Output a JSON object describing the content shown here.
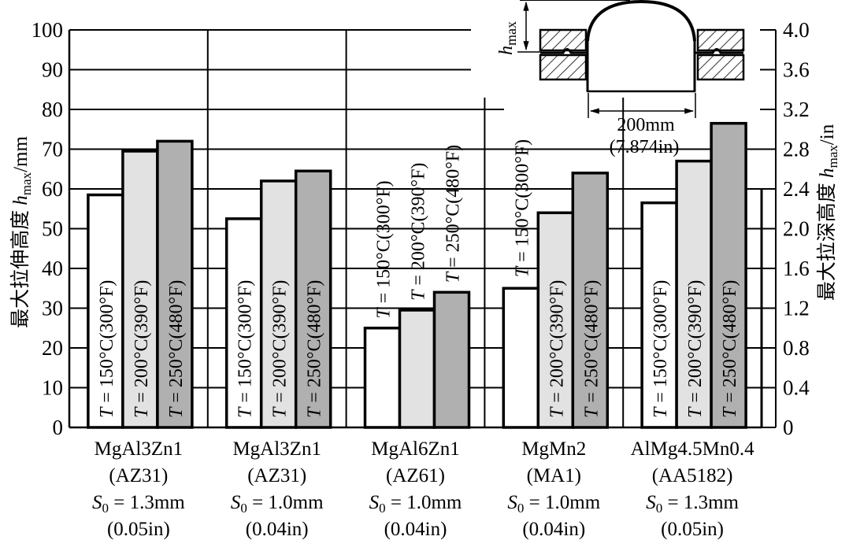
{
  "chart_data": {
    "type": "bar",
    "title": "",
    "ylabel": "最大拉伸高度 h_max/mm",
    "ylabel_parts": {
      "prefix": "最大拉伸高度 ",
      "var": "h",
      "sub": "max",
      "unit": "/mm"
    },
    "y2label": "最大拉深高度 h_max/in",
    "y2label_parts": {
      "prefix": "最大拉深高度 ",
      "var": "h",
      "sub": "max",
      "unit": "/in"
    },
    "ylim": [
      0,
      100
    ],
    "y2lim": [
      0,
      4.0
    ],
    "yticks": [
      "0",
      "10",
      "20",
      "30",
      "40",
      "50",
      "60",
      "70",
      "80",
      "90",
      "100"
    ],
    "y2ticks": [
      "0",
      "0.4",
      "0.8",
      "1.2",
      "1.6",
      "2.0",
      "2.4",
      "2.8",
      "3.2",
      "3.6",
      "4.0"
    ],
    "grid": true,
    "categories": [
      {
        "lines": [
          "MgAl3Zn1",
          "(AZ31)",
          "S0 = 1.3mm",
          "(0.05in)"
        ],
        "alloy": "MgAl3Zn1",
        "grade": "(AZ31)",
        "s_var": "S",
        "s_sub": "0",
        "s_val": " = 1.3mm",
        "inch": "(0.05in)"
      },
      {
        "lines": [
          "MgAl3Zn1",
          "(AZ31)",
          "S0 = 1.0mm",
          "(0.04in)"
        ],
        "alloy": "MgAl3Zn1",
        "grade": "(AZ31)",
        "s_var": "S",
        "s_sub": "0",
        "s_val": " = 1.0mm",
        "inch": "(0.04in)"
      },
      {
        "lines": [
          "MgAl6Zn1",
          "(AZ61)",
          "S0 = 1.0mm",
          "(0.04in)"
        ],
        "alloy": "MgAl6Zn1",
        "grade": "(AZ61)",
        "s_var": "S",
        "s_sub": "0",
        "s_val": " = 1.0mm",
        "inch": "(0.04in)"
      },
      {
        "lines": [
          "MgMn2",
          "(MA1)",
          "S0 = 1.0mm",
          "(0.04in)"
        ],
        "alloy": "MgMn2",
        "grade": "(MA1)",
        "s_var": "S",
        "s_sub": "0",
        "s_val": " = 1.0mm",
        "inch": "(0.04in)"
      },
      {
        "lines": [
          "AlMg4.5Mn0.4",
          "(AA5182)",
          "S0 = 1.3mm",
          "(0.05in)"
        ],
        "alloy": "AlMg4.5Mn0.4",
        "grade": "(AA5182)",
        "s_var": "S",
        "s_sub": "0",
        "s_val": " = 1.3mm",
        "inch": "(0.05in)"
      }
    ],
    "series": [
      {
        "name": "T = 150°C(300°F)",
        "var": "T",
        "rest": " = 150°C(300°F)",
        "color": "#ffffff",
        "values": [
          58.5,
          52.5,
          25,
          35,
          56.5
        ]
      },
      {
        "name": "T = 200°C(390°F)",
        "var": "T",
        "rest": " = 200°C(390°F)",
        "color": "#e2e2e2",
        "values": [
          69.5,
          62,
          29.5,
          54,
          67
        ]
      },
      {
        "name": "T = 250°C(480°F)",
        "var": "T",
        "rest": " = 250°C(480°F)",
        "color": "#b0b0b0",
        "values": [
          72,
          64.5,
          34,
          64,
          76.5
        ]
      }
    ],
    "inset": {
      "h_label_var": "h",
      "h_label_sub": "max",
      "dimension_mm": "200mm",
      "dimension_in": "(7.874in)"
    }
  }
}
